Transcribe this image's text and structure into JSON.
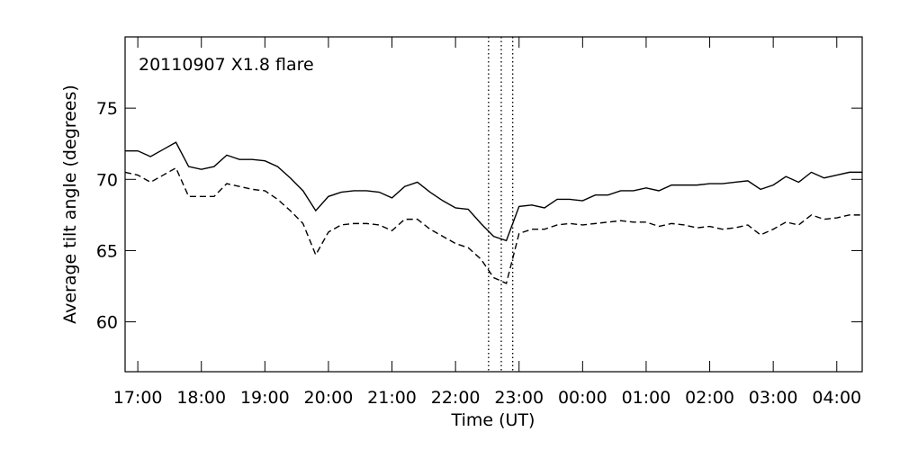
{
  "chart_data": {
    "type": "line",
    "annotation": "20110907 X1.8 flare",
    "x_label": "Time (UT)",
    "y_label": "Average tilt angle (degrees)",
    "x": [
      16.8,
      17.0,
      17.2,
      17.4,
      17.6,
      17.8,
      18.0,
      18.2,
      18.4,
      18.6,
      18.8,
      19.0,
      19.2,
      19.4,
      19.6,
      19.8,
      20.0,
      20.2,
      20.4,
      20.6,
      20.8,
      21.0,
      21.2,
      21.4,
      21.6,
      21.8,
      22.0,
      22.2,
      22.4,
      22.6,
      22.8,
      23.0,
      23.2,
      23.4,
      23.6,
      23.8,
      24.0,
      24.2,
      24.4,
      24.6,
      24.8,
      25.0,
      25.2,
      25.4,
      25.6,
      25.8,
      26.0,
      26.2,
      26.4,
      26.6,
      26.8,
      27.0,
      27.2,
      27.4,
      27.6,
      27.8,
      28.0,
      28.2,
      28.4
    ],
    "series": [
      {
        "color": "#000000",
        "style": "solid",
        "values": [
          72.0,
          72.0,
          71.6,
          72.1,
          72.6,
          70.9,
          70.7,
          70.9,
          71.7,
          71.4,
          71.4,
          71.3,
          70.9,
          70.1,
          69.2,
          67.8,
          68.8,
          69.1,
          69.2,
          69.2,
          69.1,
          68.7,
          69.5,
          69.8,
          69.1,
          68.5,
          68.0,
          67.9,
          66.9,
          66.0,
          65.7,
          68.1,
          68.2,
          68.0,
          68.6,
          68.6,
          68.5,
          68.9,
          68.9,
          69.2,
          69.2,
          69.4,
          69.2,
          69.6,
          69.6,
          69.6,
          69.7,
          69.7,
          69.8,
          69.9,
          69.3,
          69.6,
          70.2,
          69.8,
          70.5,
          70.1,
          70.3,
          70.5,
          70.5
        ]
      },
      {
        "color": "#000000",
        "style": "dashed",
        "values": [
          70.5,
          70.3,
          69.8,
          70.3,
          70.8,
          68.8,
          68.8,
          68.8,
          69.7,
          69.5,
          69.3,
          69.2,
          68.6,
          67.8,
          66.9,
          64.7,
          66.3,
          66.8,
          66.9,
          66.9,
          66.8,
          66.4,
          67.2,
          67.2,
          66.5,
          66.0,
          65.5,
          65.2,
          64.4,
          63.1,
          62.7,
          66.2,
          66.5,
          66.5,
          66.8,
          66.9,
          66.8,
          66.9,
          67.0,
          67.1,
          67.0,
          67.0,
          66.7,
          66.9,
          66.8,
          66.6,
          66.7,
          66.5,
          66.6,
          66.8,
          66.1,
          66.5,
          67.0,
          66.8,
          67.5,
          67.2,
          67.3,
          67.5,
          67.5
        ]
      }
    ],
    "vertical_lines": [
      22.52,
      22.72,
      22.9
    ],
    "xlim": [
      16.8,
      28.4
    ],
    "ylim": [
      56.5,
      80
    ],
    "xticks": [
      {
        "value": 17,
        "label": "17:00"
      },
      {
        "value": 18,
        "label": "18:00"
      },
      {
        "value": 19,
        "label": "19:00"
      },
      {
        "value": 20,
        "label": "20:00"
      },
      {
        "value": 21,
        "label": "21:00"
      },
      {
        "value": 22,
        "label": "22:00"
      },
      {
        "value": 23,
        "label": "23:00"
      },
      {
        "value": 24,
        "label": "00:00"
      },
      {
        "value": 25,
        "label": "01:00"
      },
      {
        "value": 26,
        "label": "02:00"
      },
      {
        "value": 27,
        "label": "03:00"
      },
      {
        "value": 28,
        "label": "04:00"
      }
    ],
    "yticks": [
      60,
      65,
      70,
      75
    ],
    "grid": false
  }
}
